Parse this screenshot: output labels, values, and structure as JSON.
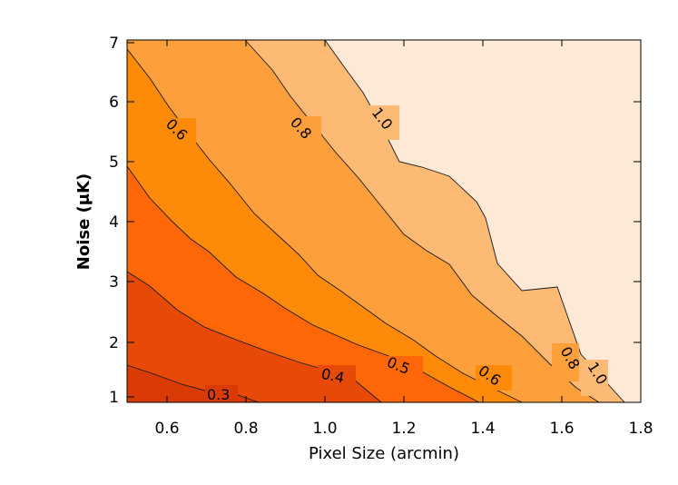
{
  "chart_data": {
    "type": "contour",
    "title": "",
    "xlabel": "Pixel Size (arcmin)",
    "ylabel": "Noise (μK)",
    "xlim": [
      0.5,
      1.8
    ],
    "ylim": [
      0.9,
      7.1
    ],
    "xticks": [
      "0.6",
      "0.8",
      "1.0",
      "1.2",
      "1.4",
      "1.6",
      "1.8"
    ],
    "yticks": [
      "1",
      "2",
      "3",
      "4",
      "5",
      "6",
      "7"
    ],
    "levels": [
      {
        "value": 0.3,
        "color": "#da3a04"
      },
      {
        "value": 0.4,
        "color": "#e64a06"
      },
      {
        "value": 0.5,
        "color": "#fd6707"
      },
      {
        "value": 0.6,
        "color": "#fd8b09"
      },
      {
        "value": 0.8,
        "color": "#fd9f3a"
      },
      {
        "value": 1.0,
        "color": "#fdba75"
      },
      {
        "value": null,
        "color": "#fde9d6"
      }
    ],
    "contours": [
      {
        "label": "0.3",
        "points": [
          [
            0.5,
            1.6
          ],
          [
            0.7,
            1.2
          ],
          [
            0.79,
            1.0
          ],
          [
            0.9,
            0.9
          ]
        ],
        "label_at": [
          0.72,
          1.04
        ]
      },
      {
        "label": "0.4",
        "points": [
          [
            0.5,
            3.2
          ],
          [
            0.6,
            2.45
          ],
          [
            0.8,
            1.75
          ],
          [
            1.0,
            1.38
          ],
          [
            1.1,
            1.1
          ],
          [
            1.15,
            0.9
          ]
        ],
        "label_at": [
          1.0,
          1.25
        ]
      },
      {
        "label": "0.5",
        "points": [
          [
            0.5,
            4.9
          ],
          [
            0.6,
            4.05
          ],
          [
            0.8,
            3.25
          ],
          [
            0.95,
            2.4
          ],
          [
            1.05,
            2.0
          ],
          [
            1.2,
            1.5
          ],
          [
            1.4,
            1.1
          ],
          [
            1.5,
            0.9
          ]
        ],
        "label_at": [
          1.2,
          1.38
        ]
      },
      {
        "label": "0.6",
        "points": [
          [
            0.5,
            6.85
          ],
          [
            0.6,
            5.8
          ],
          [
            0.7,
            5.1
          ],
          [
            0.8,
            4.4
          ],
          [
            1.0,
            3.5
          ],
          [
            1.2,
            2.7
          ],
          [
            1.3,
            2.3
          ],
          [
            1.4,
            1.6
          ],
          [
            1.5,
            1.2
          ],
          [
            1.6,
            0.9
          ]
        ],
        "label_at": [
          0.61,
          5.55
        ]
      },
      {
        "label": "0.6",
        "points": [],
        "label_at": [
          1.42,
          1.25
        ]
      },
      {
        "label": "0.8",
        "points": [
          [
            0.88,
            7.1
          ],
          [
            1.0,
            6.0
          ],
          [
            1.1,
            5.2
          ],
          [
            1.2,
            4.2
          ],
          [
            1.3,
            3.65
          ],
          [
            1.4,
            2.6
          ],
          [
            1.5,
            2.0
          ],
          [
            1.6,
            1.5
          ],
          [
            1.7,
            1.1
          ],
          [
            1.75,
            0.9
          ]
        ],
        "label_at": [
          0.93,
          5.85
        ]
      },
      {
        "label": "0.8",
        "points": [],
        "label_at": [
          1.6,
          1.55
        ]
      },
      {
        "label": "1.0",
        "points": [
          [
            1.07,
            7.1
          ],
          [
            1.12,
            6.2
          ],
          [
            1.2,
            5.0
          ],
          [
            1.3,
            4.75
          ],
          [
            1.42,
            3.95
          ],
          [
            1.5,
            3.3
          ],
          [
            1.6,
            3.0
          ],
          [
            1.62,
            2.5
          ],
          [
            1.7,
            1.4
          ],
          [
            1.75,
            0.9
          ]
        ],
        "label_at": [
          1.17,
          6.05
        ]
      },
      {
        "label": "1.0",
        "points": [],
        "label_at": [
          1.7,
          1.38
        ]
      }
    ]
  }
}
